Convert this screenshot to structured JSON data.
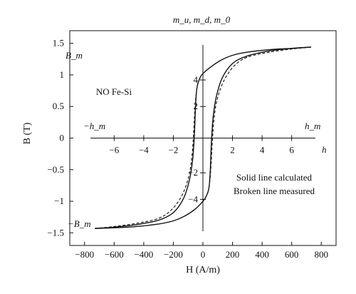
{
  "chart_data": {
    "type": "line",
    "xlabel": "H (A/m)",
    "ylabel": "B (T)",
    "xlim": [
      -900,
      900
    ],
    "ylim": [
      -1.7,
      1.7
    ],
    "x_ticks": [
      -800,
      -600,
      -400,
      -200,
      0,
      200,
      400,
      600,
      800
    ],
    "y_ticks": [
      -1.5,
      -1,
      -0.5,
      0,
      0.5,
      1,
      1.5
    ],
    "grid": false,
    "annotations": {
      "top_label": "m_u, m_d, m_0",
      "material": "NO Fe-Si",
      "bm": "B_m",
      "neg_bm": "−B_m",
      "hm": "h_m",
      "neg_hm": "−h_m",
      "h": "h",
      "legend_line1": "Solid line calculated",
      "legend_line2": "Broken line measured"
    },
    "inner_axis": {
      "h_ticks": [
        -6,
        -4,
        -2,
        2,
        4,
        6
      ],
      "m_ticks": [
        4,
        2,
        -2,
        -4
      ],
      "m_tick_positions_B": [
        0.92,
        0.5,
        -0.55,
        -0.97
      ]
    },
    "series": [
      {
        "name": "Solid line calculated",
        "style": "solid",
        "x": [
          -730,
          -600,
          -450,
          -300,
          -200,
          -130,
          -90,
          -70,
          -60,
          -55,
          -50,
          -40,
          -20,
          0,
          50,
          120,
          200,
          300,
          450,
          600,
          730
        ],
        "y": [
          -1.43,
          -1.41,
          -1.37,
          -1.3,
          -1.18,
          -0.95,
          -0.65,
          -0.35,
          -0.05,
          0.2,
          0.5,
          0.8,
          0.95,
          1.02,
          1.12,
          1.23,
          1.31,
          1.36,
          1.4,
          1.42,
          1.44
        ]
      },
      {
        "name": "Solid line calculated",
        "style": "solid",
        "x": [
          730,
          600,
          450,
          300,
          200,
          130,
          90,
          70,
          60,
          55,
          50,
          40,
          20,
          0,
          -50,
          -120,
          -200,
          -300,
          -450,
          -600,
          -730
        ],
        "y": [
          1.44,
          1.42,
          1.38,
          1.3,
          1.18,
          0.95,
          0.65,
          0.35,
          0.05,
          -0.2,
          -0.5,
          -0.8,
          -0.93,
          -1.0,
          -1.12,
          -1.23,
          -1.31,
          -1.36,
          -1.4,
          -1.42,
          -1.43
        ]
      },
      {
        "name": "Broken line measured",
        "style": "dashed",
        "x": [
          -730,
          -600,
          -450,
          -300,
          -210,
          -140,
          -95,
          -75,
          -65,
          -58,
          -50,
          -40
        ],
        "y": [
          -1.43,
          -1.4,
          -1.35,
          -1.27,
          -1.13,
          -0.9,
          -0.6,
          -0.3,
          0.0,
          0.3,
          0.6,
          0.8
        ]
      },
      {
        "name": "Broken line measured",
        "style": "dashed",
        "x": [
          730,
          600,
          450,
          300,
          210,
          140,
          95,
          75,
          65,
          58,
          50,
          40
        ],
        "y": [
          1.44,
          1.41,
          1.36,
          1.28,
          1.14,
          0.9,
          0.6,
          0.3,
          0.0,
          -0.3,
          -0.6,
          -0.8
        ]
      }
    ]
  }
}
